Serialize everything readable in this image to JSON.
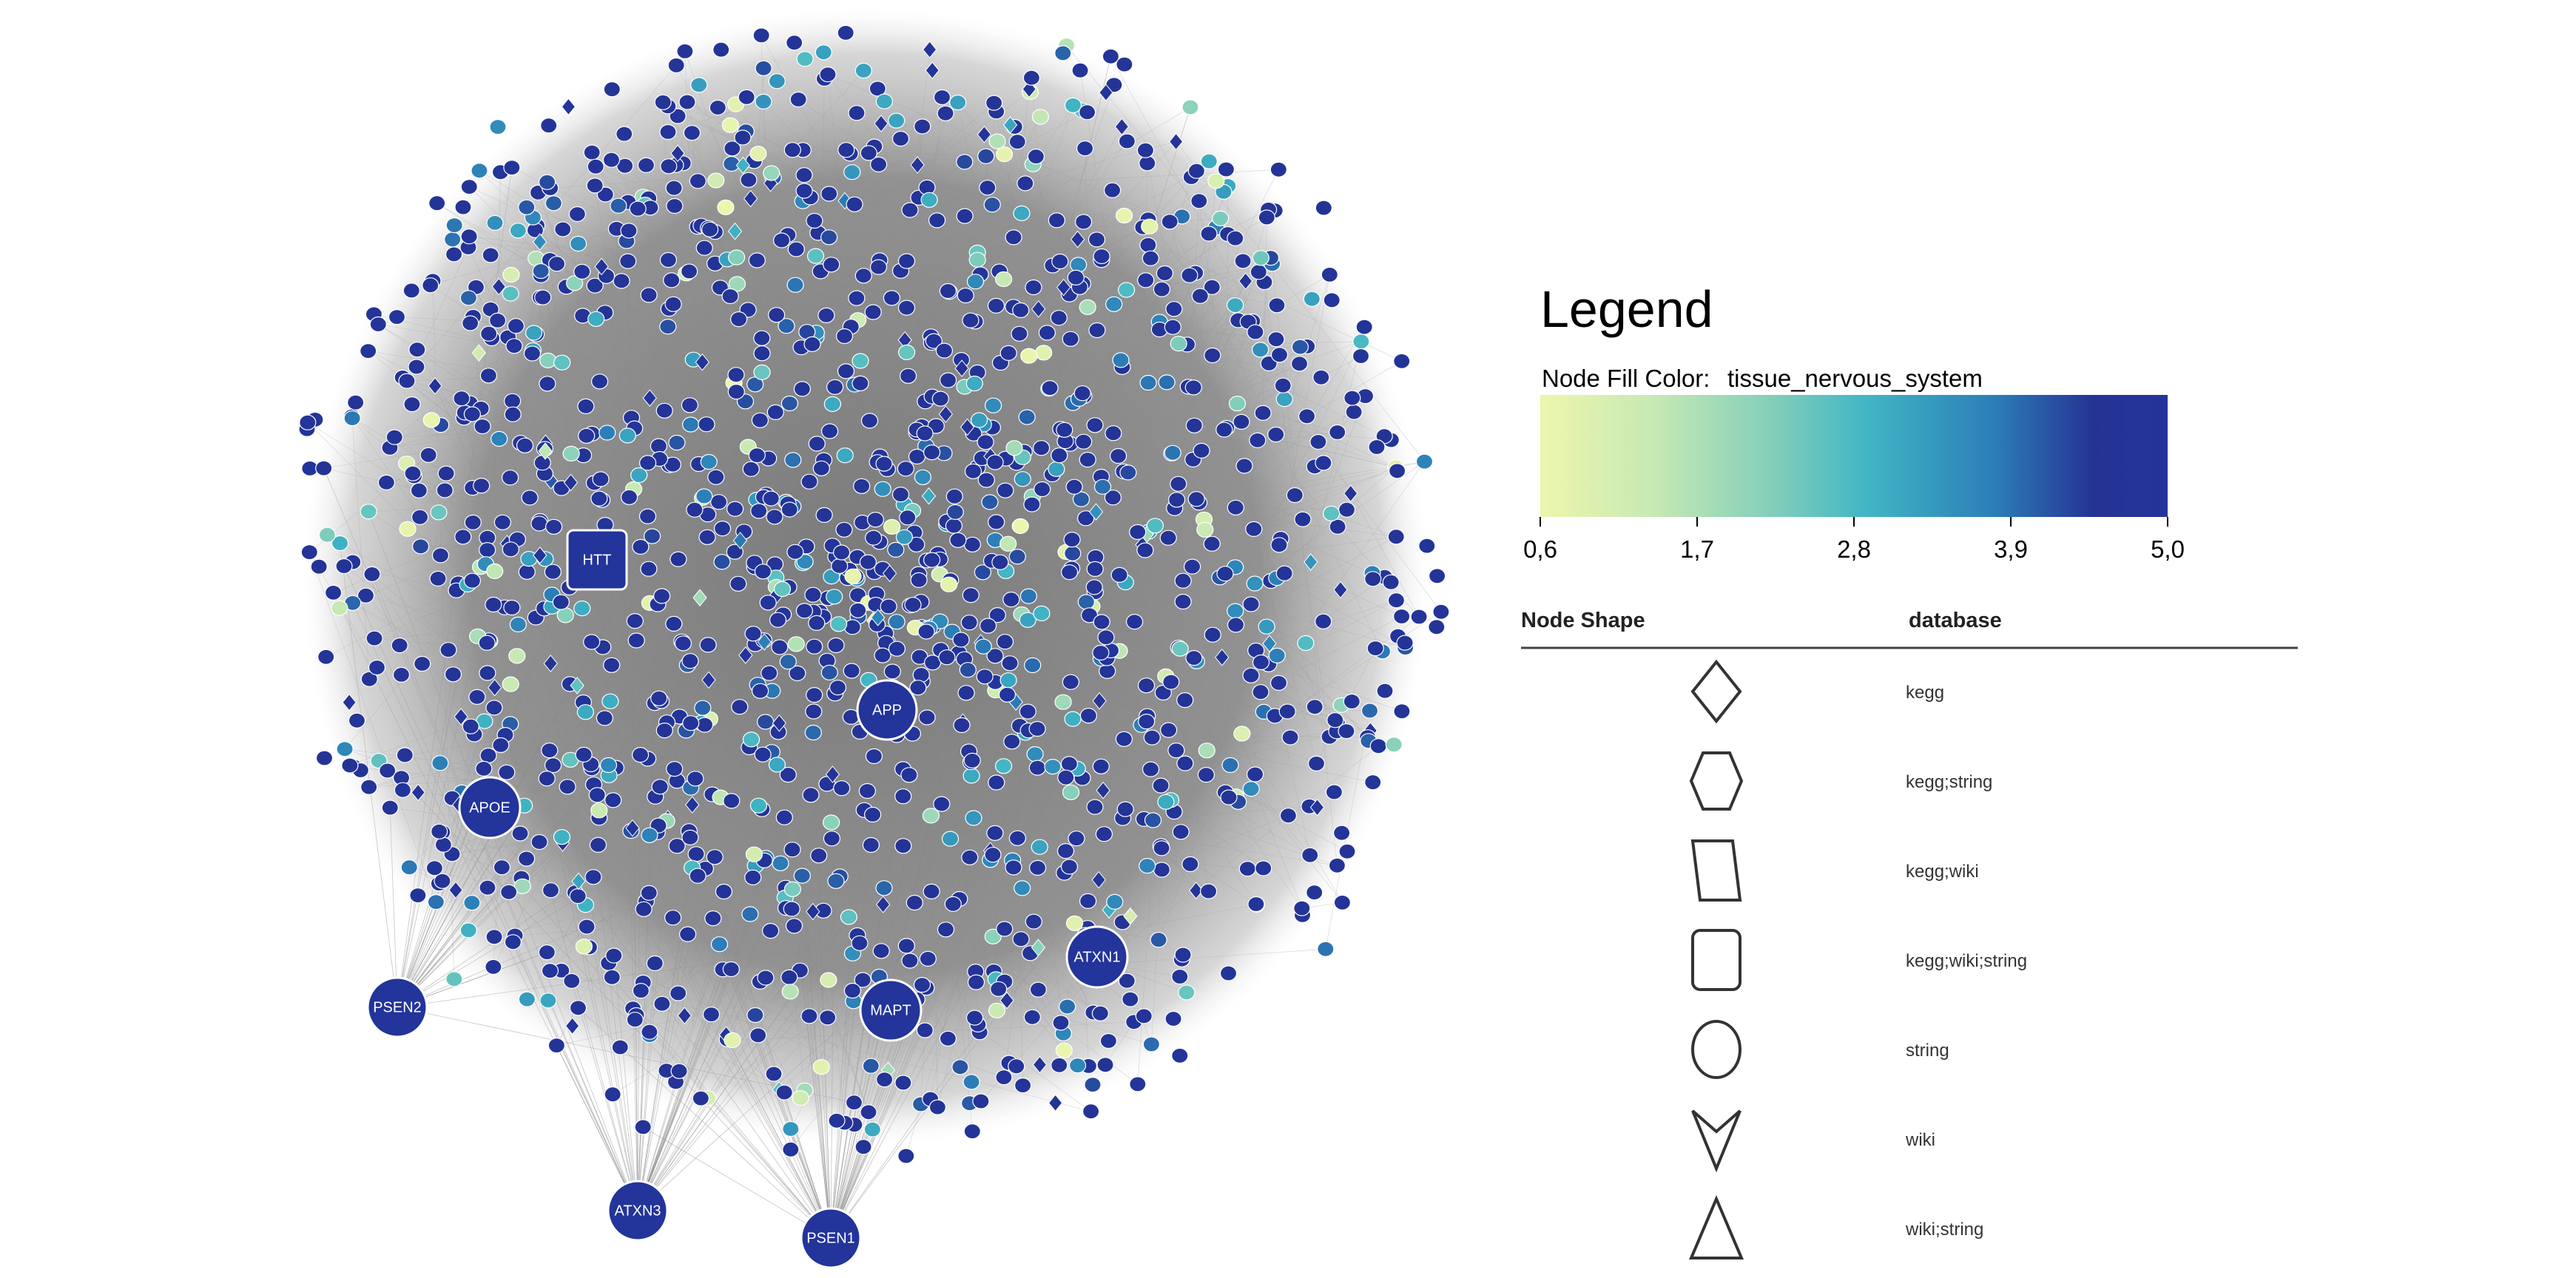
{
  "diagram": {
    "type": "network-graph",
    "node_fill_range": [
      0.6,
      5.0
    ],
    "hubs": [
      {
        "label": "HTT",
        "shape": "rounded-square",
        "value": 5.0
      },
      {
        "label": "APP",
        "shape": "circle",
        "value": 5.0
      },
      {
        "label": "APOE",
        "shape": "circle",
        "value": 5.0
      },
      {
        "label": "ATXN1",
        "shape": "circle",
        "value": 5.0
      },
      {
        "label": "MAPT",
        "shape": "circle",
        "value": 5.0
      },
      {
        "label": "PSEN2",
        "shape": "circle",
        "value": 5.0
      },
      {
        "label": "ATXN3",
        "shape": "circle",
        "value": 5.0
      },
      {
        "label": "PSEN1",
        "shape": "circle",
        "value": 5.0
      }
    ],
    "colors": {
      "edge": "#8a8a8a",
      "dense_core": "#7d7d7d",
      "hub_fill": "#263a94",
      "hub_stroke": "#ffffff",
      "node_dark": "#2b3d98",
      "gradient": [
        "#edf6ac",
        "#c7e9b4",
        "#7fcdbb",
        "#41b6c4",
        "#2c7fb8",
        "#253494",
        "#23349a"
      ]
    }
  },
  "legend": {
    "title": "Legend",
    "fill_prefix": "Node Fill Color:",
    "fill_attribute": "tissue_nervous_system",
    "ticks": [
      "0,6",
      "1,7",
      "2,8",
      "3,9",
      "5,0"
    ],
    "shape_header_left": "Node Shape",
    "shape_header_right": "database",
    "shapes": [
      {
        "shape": "diamond",
        "label": "kegg"
      },
      {
        "shape": "hexagon",
        "label": "kegg;string"
      },
      {
        "shape": "parallelogram",
        "label": "kegg;wiki"
      },
      {
        "shape": "rounded-square",
        "label": "kegg;wiki;string"
      },
      {
        "shape": "ellipse",
        "label": "string"
      },
      {
        "shape": "v",
        "label": "wiki"
      },
      {
        "shape": "triangle",
        "label": "wiki;string"
      }
    ]
  }
}
